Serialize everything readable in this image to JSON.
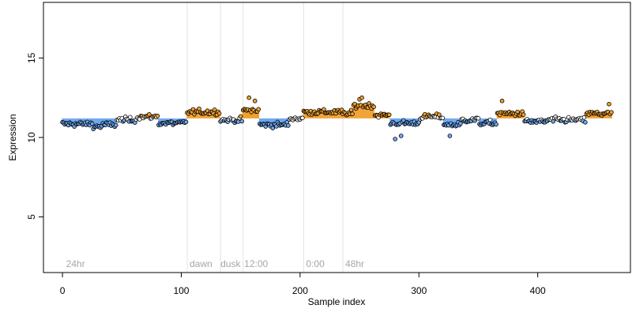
{
  "chart_data": {
    "type": "scatter",
    "title": "",
    "xlabel": "Sample index",
    "ylabel": "Expression",
    "xlim": [
      -16,
      478
    ],
    "ylim": [
      1.5,
      18.5
    ],
    "xticks": [
      0,
      100,
      200,
      300,
      400
    ],
    "yticks": [
      5,
      10,
      15
    ],
    "grid": false,
    "baseline": 11.2,
    "n_points": 463,
    "colors": {
      "above": "#f0a030",
      "below": "#6fa8f0",
      "neutral": "#ffffff",
      "separator": "#e3e3e3",
      "condition_label": "#a6a6a6"
    },
    "condition_separators": [
      105,
      133,
      152,
      203,
      236
    ],
    "condition_labels": [
      {
        "text": "24hr",
        "x": 3
      },
      {
        "text": "dawn",
        "x": 107
      },
      {
        "text": "dusk",
        "x": 133
      },
      {
        "text": "12:00",
        "x": 153
      },
      {
        "text": "0:00",
        "x": 205
      },
      {
        "text": "48hr",
        "x": 238
      }
    ],
    "segments": [
      {
        "start": 0,
        "end": 25,
        "level": 10.85
      },
      {
        "start": 26,
        "end": 33,
        "level": 10.7
      },
      {
        "start": 34,
        "end": 45,
        "level": 10.8
      },
      {
        "start": 46,
        "end": 62,
        "level": 11.1
      },
      {
        "start": 63,
        "end": 80,
        "level": 11.3
      },
      {
        "start": 81,
        "end": 104,
        "level": 10.9
      },
      {
        "start": 105,
        "end": 132,
        "level": 11.6
      },
      {
        "start": 133,
        "end": 151,
        "level": 11.1
      },
      {
        "start": 152,
        "end": 165,
        "level": 11.7
      },
      {
        "start": 166,
        "end": 190,
        "level": 10.8
      },
      {
        "start": 191,
        "end": 202,
        "level": 11.2
      },
      {
        "start": 203,
        "end": 235,
        "level": 11.6
      },
      {
        "start": 236,
        "end": 244,
        "level": 11.5
      },
      {
        "start": 245,
        "end": 262,
        "level": 12.0
      },
      {
        "start": 263,
        "end": 275,
        "level": 11.4
      },
      {
        "start": 276,
        "end": 300,
        "level": 10.9
      },
      {
        "start": 301,
        "end": 320,
        "level": 11.3
      },
      {
        "start": 321,
        "end": 335,
        "level": 10.8
      },
      {
        "start": 336,
        "end": 350,
        "level": 11.1
      },
      {
        "start": 351,
        "end": 365,
        "level": 10.9
      },
      {
        "start": 366,
        "end": 388,
        "level": 11.5
      },
      {
        "start": 389,
        "end": 408,
        "level": 11.0
      },
      {
        "start": 409,
        "end": 440,
        "level": 11.1
      },
      {
        "start": 441,
        "end": 462,
        "level": 11.5
      }
    ],
    "outliers": [
      {
        "x": 157,
        "y": 12.5
      },
      {
        "x": 162,
        "y": 12.3
      },
      {
        "x": 250,
        "y": 12.4
      },
      {
        "x": 252,
        "y": 12.5
      },
      {
        "x": 280,
        "y": 9.9
      },
      {
        "x": 285,
        "y": 10.1
      },
      {
        "x": 326,
        "y": 10.1
      },
      {
        "x": 370,
        "y": 12.3
      },
      {
        "x": 460,
        "y": 12.1
      }
    ]
  }
}
